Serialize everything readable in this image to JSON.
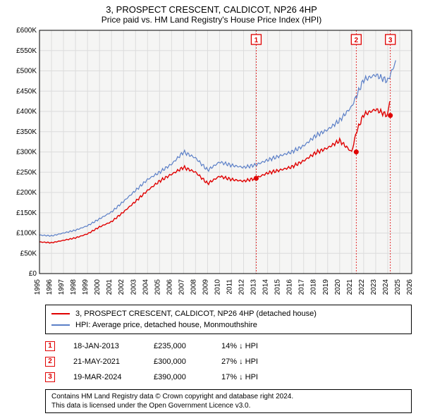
{
  "title": "3, PROSPECT CRESCENT, CALDICOT, NP26 4HP",
  "subtitle": "Price paid vs. HM Land Registry's House Price Index (HPI)",
  "chart": {
    "type": "line",
    "background_color": "#ffffff",
    "plot_background": "#f5f5f4",
    "grid_color": "#dcdcdc",
    "axis_color": "#000000",
    "font_size_axis": 10,
    "x_years": [
      1995,
      1996,
      1997,
      1998,
      1999,
      2000,
      2001,
      2002,
      2003,
      2004,
      2005,
      2006,
      2007,
      2008,
      2009,
      2010,
      2011,
      2012,
      2013,
      2014,
      2015,
      2016,
      2017,
      2018,
      2019,
      2020,
      2021,
      2022,
      2023,
      2024,
      2025,
      2026
    ],
    "ylim": [
      0,
      600000
    ],
    "ytick_step": 50000,
    "ytick_labels": [
      "£0",
      "£50K",
      "£100K",
      "£150K",
      "£200K",
      "£250K",
      "£300K",
      "£350K",
      "£400K",
      "£450K",
      "£500K",
      "£550K",
      "£600K"
    ],
    "series": [
      {
        "name": "hpi",
        "color": "#5b7fc7",
        "width": 1.2,
        "points_by_year": {
          "1995": 95000,
          "1996": 93000,
          "1997": 100000,
          "1998": 107000,
          "1999": 118000,
          "2000": 135000,
          "2001": 152000,
          "2002": 178000,
          "2003": 205000,
          "2004": 232000,
          "2005": 250000,
          "2006": 270000,
          "2007": 300000,
          "2008": 285000,
          "2009": 255000,
          "2010": 275000,
          "2011": 267000,
          "2012": 262000,
          "2013": 268000,
          "2014": 280000,
          "2015": 290000,
          "2016": 300000,
          "2017": 315000,
          "2018": 340000,
          "2019": 355000,
          "2020": 378000,
          "2021": 412000,
          "2022": 478000,
          "2023": 490000,
          "2024": 475000,
          "2024.7": 525000
        }
      },
      {
        "name": "price_paid",
        "color": "#e00000",
        "width": 1.4,
        "points_by_year": {
          "1995": 78000,
          "1996": 76000,
          "1997": 82000,
          "1998": 88000,
          "1999": 98000,
          "2000": 115000,
          "2001": 128000,
          "2002": 152000,
          "2003": 178000,
          "2004": 205000,
          "2005": 228000,
          "2006": 245000,
          "2007": 262000,
          "2008": 250000,
          "2009": 222000,
          "2010": 240000,
          "2011": 232000,
          "2012": 228000,
          "2013": 235000,
          "2014": 248000,
          "2015": 255000,
          "2016": 263000,
          "2017": 278000,
          "2018": 298000,
          "2019": 310000,
          "2020": 328000,
          "2021": 300000,
          "2021.4": 350000,
          "2022": 392000,
          "2023": 405000,
          "2024": 390000,
          "2024.2": 438000
        }
      }
    ],
    "markers": [
      {
        "n": "1",
        "year": 2013.05,
        "price": 235000
      },
      {
        "n": "2",
        "year": 2021.38,
        "price": 300000
      },
      {
        "n": "3",
        "year": 2024.22,
        "price": 390000
      }
    ],
    "marker_color": "#e00000",
    "marker_dot_radius": 3.5
  },
  "legend": {
    "items": [
      {
        "color": "#e00000",
        "label": "3, PROSPECT CRESCENT, CALDICOT, NP26 4HP (detached house)"
      },
      {
        "color": "#5b7fc7",
        "label": "HPI: Average price, detached house, Monmouthshire"
      }
    ]
  },
  "transactions": [
    {
      "n": "1",
      "date": "18-JAN-2013",
      "price": "£235,000",
      "diff": "14% ↓ HPI"
    },
    {
      "n": "2",
      "date": "21-MAY-2021",
      "price": "£300,000",
      "diff": "27% ↓ HPI"
    },
    {
      "n": "3",
      "date": "19-MAR-2024",
      "price": "£390,000",
      "diff": "17% ↓ HPI"
    }
  ],
  "footer": {
    "line1": "Contains HM Land Registry data © Crown copyright and database right 2024.",
    "line2": "This data is licensed under the Open Government Licence v3.0."
  }
}
